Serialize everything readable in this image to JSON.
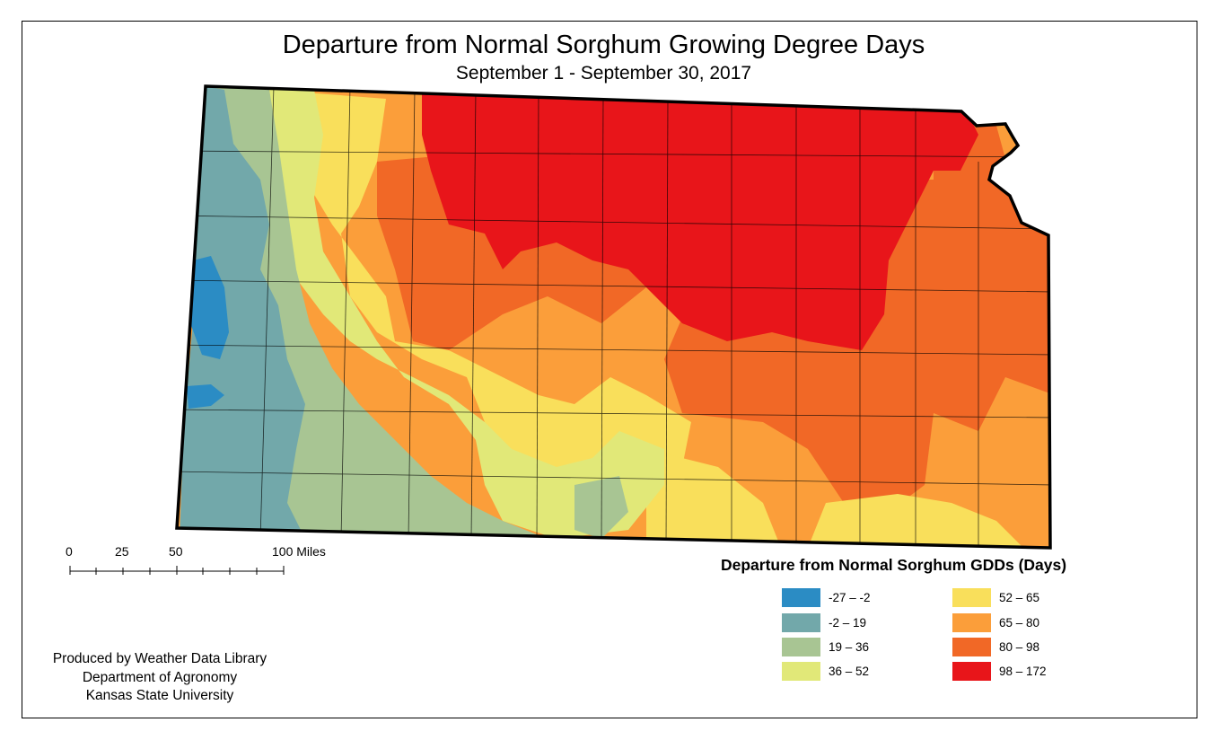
{
  "header": {
    "title": "Departure from Normal Sorghum Growing Degree Days",
    "subtitle": "September 1 - September 30, 2017"
  },
  "legend": {
    "title": "Departure from Normal Sorghum GDDs (Days)",
    "items": [
      {
        "label": "-27 – -2",
        "color": "#2b8cc4"
      },
      {
        "label": "-2 – 19",
        "color": "#72a8aa"
      },
      {
        "label": "19 – 36",
        "color": "#a8c593"
      },
      {
        "label": "36 – 52",
        "color": "#e1e878"
      },
      {
        "label": "52 – 65",
        "color": "#f9df5b"
      },
      {
        "label": "65 – 80",
        "color": "#fb9e3a"
      },
      {
        "label": "80 – 98",
        "color": "#f16826"
      },
      {
        "label": "98 – 172",
        "color": "#e8151a"
      }
    ]
  },
  "scale_bar": {
    "labels": [
      "0",
      "25",
      "50",
      "100 Miles"
    ]
  },
  "credits": {
    "line1": "Produced by Weather Data Library",
    "line2": "Department of Agronomy",
    "line3": "Kansas State University"
  },
  "map": {
    "state": "Kansas",
    "boundary_color": "#000000"
  }
}
